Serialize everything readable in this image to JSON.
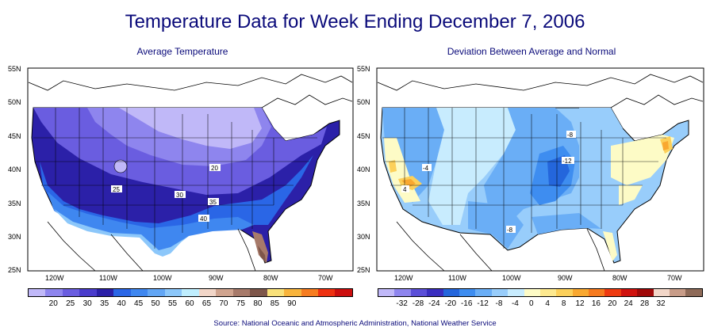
{
  "title": "Temperature Data for Week Ending December 7, 2006",
  "left_map": {
    "subtitle": "Average Temperature",
    "lat_labels": [
      "55N",
      "50N",
      "45N",
      "40N",
      "35N",
      "30N",
      "25N"
    ],
    "lon_labels": [
      "120W",
      "110W",
      "100W",
      "90W",
      "80W",
      "70W"
    ],
    "contour_labels": [
      "20",
      "25",
      "30",
      "35",
      "40"
    ],
    "legend": {
      "colors": [
        "#c0b8f8",
        "#8e85ee",
        "#6a5de0",
        "#4a3ccc",
        "#2b20a8",
        "#2a66e6",
        "#3f87f0",
        "#62a6f5",
        "#8cc7fa",
        "#bfeefe",
        "#f2d6c8",
        "#d0a48f",
        "#a77a6a",
        "#7e564a",
        "#f9e17a",
        "#f8b43c",
        "#f67c1f",
        "#ee3010",
        "#cc0e0e"
      ],
      "labels": [
        "20",
        "25",
        "30",
        "35",
        "40",
        "45",
        "50",
        "55",
        "60",
        "65",
        "70",
        "75",
        "80",
        "85",
        "90"
      ]
    }
  },
  "right_map": {
    "subtitle": "Deviation Between Average and Normal",
    "lat_labels": [
      "55N",
      "50N",
      "45N",
      "40N",
      "35N",
      "30N",
      "25N"
    ],
    "lon_labels": [
      "120W",
      "110W",
      "100W",
      "90W",
      "80W",
      "70W"
    ],
    "contour_labels": [
      "-4",
      "4",
      "-8",
      "-12",
      "-8"
    ],
    "legend": {
      "colors": [
        "#c0b8f8",
        "#8e85ee",
        "#5b4fd8",
        "#3a2ec0",
        "#2466dc",
        "#3e8df0",
        "#6aaef6",
        "#98cdfb",
        "#c8ecfe",
        "#fdfbc6",
        "#fde98f",
        "#fcd05a",
        "#f9a830",
        "#f67a1e",
        "#ee3a10",
        "#d0120e",
        "#a00808",
        "#f2d6c8",
        "#c89c88",
        "#8e6a58"
      ],
      "labels": [
        "-32",
        "-28",
        "-24",
        "-20",
        "-16",
        "-12",
        "-8",
        "-4",
        "0",
        "4",
        "8",
        "12",
        "16",
        "20",
        "24",
        "28",
        "32"
      ]
    }
  },
  "source": "Source:  National Oceanic and Atmospheric Administration, National Weather Service"
}
